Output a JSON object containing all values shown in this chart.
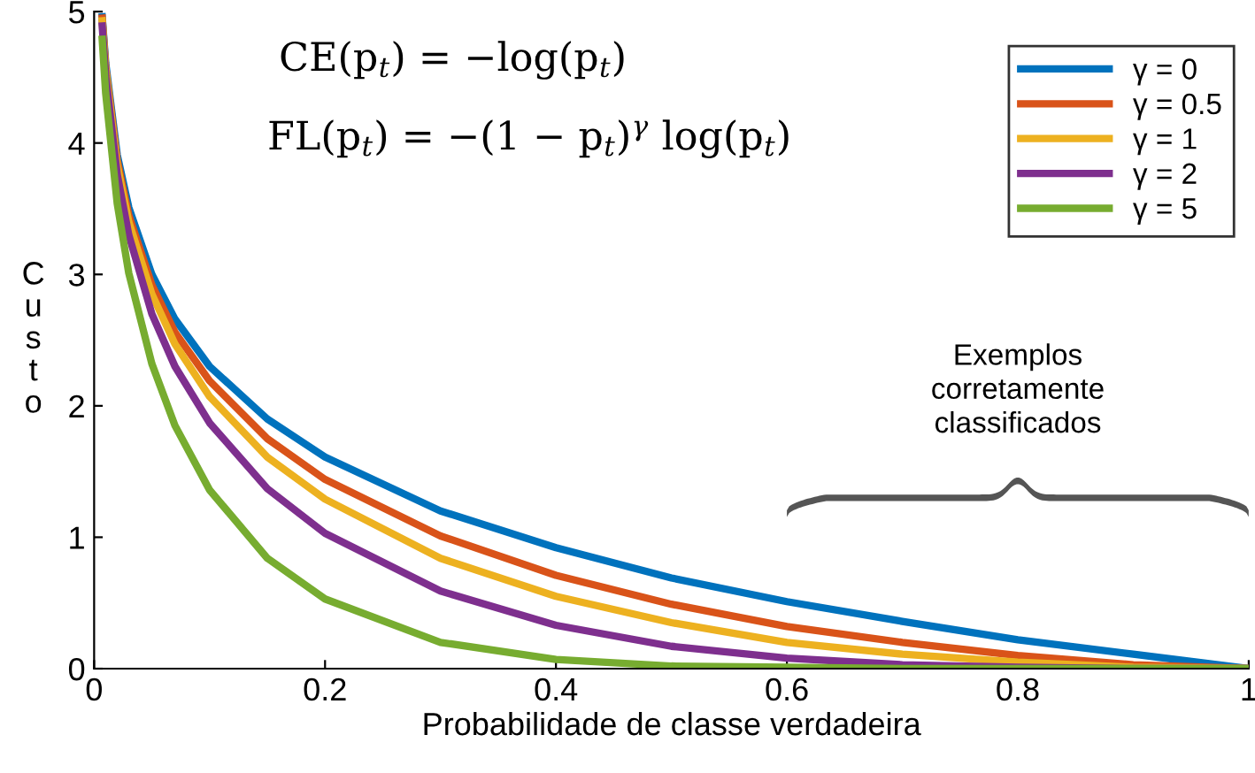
{
  "chart_data": {
    "type": "line",
    "xlabel": "Probabilidade de classe verdadeira",
    "ylabel": "Custo",
    "x": [
      0.007,
      0.01,
      0.02,
      0.03,
      0.05,
      0.07,
      0.1,
      0.15,
      0.2,
      0.3,
      0.4,
      0.5,
      0.6,
      0.7,
      0.8,
      0.9,
      1.0
    ],
    "series": [
      {
        "name": "γ = 0",
        "color": "#0072bd",
        "values": [
          4.96,
          4.61,
          3.91,
          3.51,
          3.0,
          2.66,
          2.3,
          1.9,
          1.61,
          1.2,
          0.92,
          0.69,
          0.51,
          0.36,
          0.22,
          0.11,
          0
        ]
      },
      {
        "name": "γ = 0.5",
        "color": "#d95319",
        "values": [
          4.95,
          4.58,
          3.87,
          3.45,
          2.92,
          2.56,
          2.19,
          1.75,
          1.44,
          1.01,
          0.71,
          0.49,
          0.32,
          0.2,
          0.1,
          0.03,
          0
        ]
      },
      {
        "name": "γ = 1",
        "color": "#edb120",
        "values": [
          4.93,
          4.56,
          3.83,
          3.4,
          2.85,
          2.47,
          2.07,
          1.61,
          1.29,
          0.84,
          0.55,
          0.35,
          0.2,
          0.11,
          0.05,
          0.01,
          0
        ]
      },
      {
        "name": "γ = 2",
        "color": "#7e2f8e",
        "values": [
          4.89,
          4.51,
          3.76,
          3.3,
          2.7,
          2.3,
          1.87,
          1.37,
          1.03,
          0.59,
          0.33,
          0.17,
          0.08,
          0.03,
          0.01,
          0,
          0
        ]
      },
      {
        "name": "γ = 5",
        "color": "#77ac30",
        "values": [
          4.79,
          4.38,
          3.54,
          3.01,
          2.32,
          1.85,
          1.36,
          0.84,
          0.53,
          0.2,
          0.07,
          0.02,
          0.01,
          0,
          0,
          0,
          0
        ]
      }
    ],
    "xlim": [
      0,
      1
    ],
    "xticks": [
      0,
      0.2,
      0.4,
      0.6,
      0.8,
      1
    ],
    "ylim": [
      0,
      5
    ],
    "yticks": [
      0,
      1,
      2,
      3,
      4,
      5
    ],
    "grid": false,
    "legend": "top right",
    "marker": "none",
    "line_style": "solid",
    "annotations": [
      "CE(p$_{t}$) = −log(p$_{t}$)",
      "FL(p$_{t}$) = −(1 − p$_{t}$)$^{γ}$ log(p$_{t}$)",
      "Exemplos\ncorretamente\nclassificados"
    ]
  }
}
